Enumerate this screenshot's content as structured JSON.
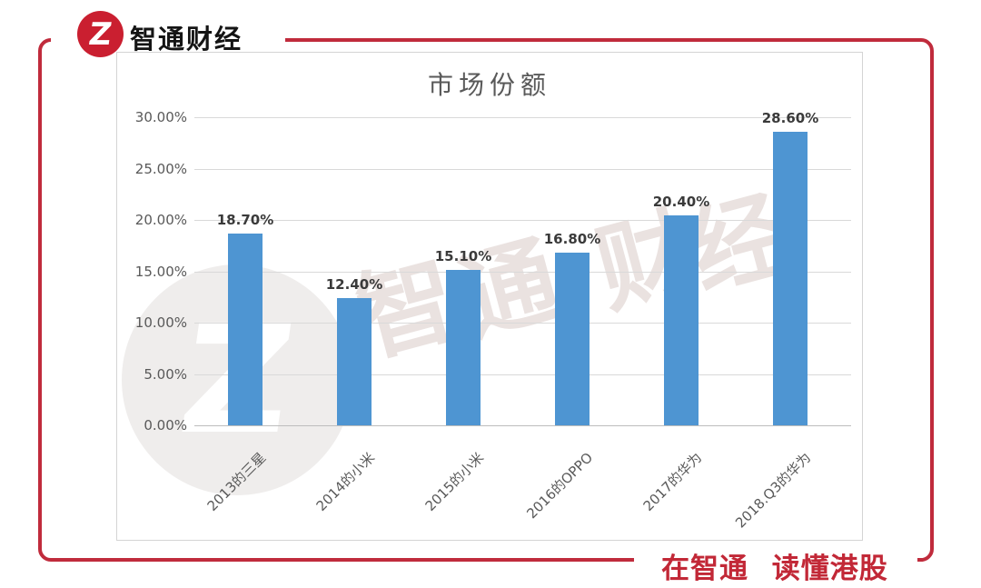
{
  "brand": {
    "name": "智通财经",
    "logo_letter": "Z",
    "accent_color": "#c02b3c",
    "logo_color": "#ca1f30"
  },
  "footer": {
    "slogan": "在智通 读懂港股"
  },
  "watermark": {
    "logo_letter": "Z",
    "chars": [
      "智",
      "通",
      "财",
      "经"
    ]
  },
  "chart_data": {
    "type": "bar",
    "title": "市场份额",
    "categories": [
      "2013的三星",
      "2014的小米",
      "2015的小米",
      "2016的OPPO",
      "2017的华为",
      "2018.Q3的华为"
    ],
    "values": [
      18.7,
      12.4,
      15.1,
      16.8,
      20.4,
      28.6
    ],
    "data_labels": [
      "18.70%",
      "12.40%",
      "15.10%",
      "16.80%",
      "20.40%",
      "28.60%"
    ],
    "xlabel": "",
    "ylabel": "",
    "ylim": [
      0,
      30
    ],
    "ytick_step": 5,
    "ytick_labels": [
      "0.00%",
      "5.00%",
      "10.00%",
      "15.00%",
      "20.00%",
      "25.00%",
      "30.00%"
    ],
    "bar_color": "#4e95d2",
    "grid": true,
    "legend": false
  }
}
